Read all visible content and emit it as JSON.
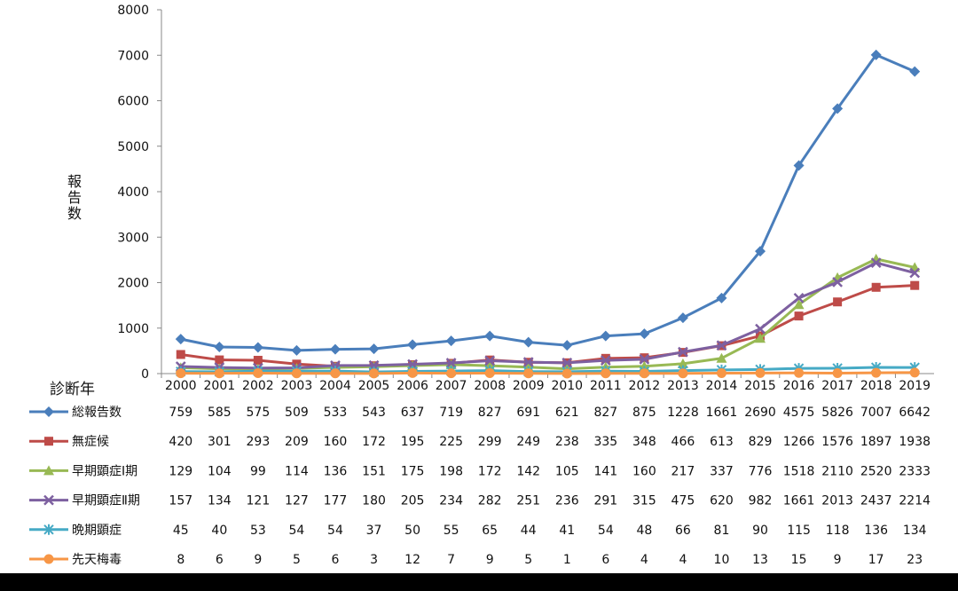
{
  "colors": {
    "total": "#4a7ebb",
    "asymptomatic": "#be4b48",
    "early1": "#98b954",
    "early2": "#7d60a0",
    "late": "#46aac5",
    "congenital": "#f79646"
  },
  "chart_data": {
    "type": "line",
    "title": "",
    "xlabel": "診断年",
    "ylabel": "報告数",
    "ylim": [
      0,
      8000
    ],
    "yticks": [
      0,
      1000,
      2000,
      3000,
      4000,
      5000,
      6000,
      7000,
      8000
    ],
    "grid": false,
    "legend": "data-table-left",
    "categories": [
      "2000",
      "2001",
      "2002",
      "2003",
      "2004",
      "2005",
      "2006",
      "2007",
      "2008",
      "2009",
      "2010",
      "2011",
      "2012",
      "2013",
      "2014",
      "2015",
      "2016",
      "2017",
      "2018",
      "2019"
    ],
    "series": [
      {
        "name": "総報告数",
        "key": "total",
        "marker": "diamond",
        "values": [
          759,
          585,
          575,
          509,
          533,
          543,
          637,
          719,
          827,
          691,
          621,
          827,
          875,
          1228,
          1661,
          2690,
          4575,
          5826,
          7007,
          6642
        ]
      },
      {
        "name": "無症候",
        "key": "asymptomatic",
        "marker": "square",
        "values": [
          420,
          301,
          293,
          209,
          160,
          172,
          195,
          225,
          299,
          249,
          238,
          335,
          348,
          466,
          613,
          829,
          1266,
          1576,
          1897,
          1938
        ]
      },
      {
        "name": "早期顕症Ⅰ期",
        "key": "early1",
        "marker": "triangle",
        "values": [
          129,
          104,
          99,
          114,
          136,
          151,
          175,
          198,
          172,
          142,
          105,
          141,
          160,
          217,
          337,
          776,
          1518,
          2110,
          2520,
          2333
        ]
      },
      {
        "name": "早期顕症Ⅱ期",
        "key": "early2",
        "marker": "x",
        "values": [
          157,
          134,
          121,
          127,
          177,
          180,
          205,
          234,
          282,
          251,
          236,
          291,
          315,
          475,
          620,
          982,
          1661,
          2013,
          2437,
          2214
        ]
      },
      {
        "name": "晩期顕症",
        "key": "late",
        "marker": "star",
        "values": [
          45,
          40,
          53,
          54,
          54,
          37,
          50,
          55,
          65,
          44,
          41,
          54,
          48,
          66,
          81,
          90,
          115,
          118,
          136,
          134
        ]
      },
      {
        "name": "先天梅毒",
        "key": "congenital",
        "marker": "circle",
        "values": [
          8,
          6,
          9,
          5,
          6,
          3,
          12,
          7,
          9,
          5,
          1,
          6,
          4,
          4,
          10,
          13,
          15,
          9,
          17,
          23
        ]
      }
    ]
  }
}
